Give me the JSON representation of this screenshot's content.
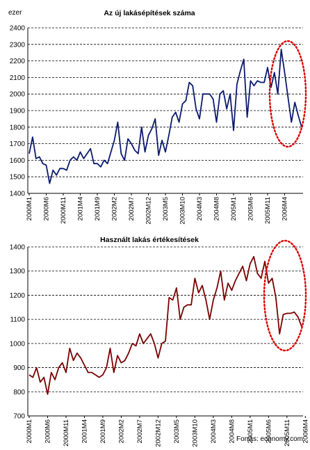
{
  "source": "Forrás: economy.com",
  "colors": {
    "chart1_line": "#0a1a6e",
    "chart2_line": "#7a0000",
    "ellipse": "#dd0000",
    "grid": "#000000"
  },
  "chart_data": [
    {
      "type": "line",
      "title": "Az új lakásépítések száma",
      "ylabel": "ezer",
      "ylim": [
        1400,
        2400
      ],
      "yticks": [
        1400,
        1500,
        1600,
        1700,
        1800,
        1900,
        2000,
        2100,
        2200,
        2300,
        2400
      ],
      "grid": "horizontal dashed",
      "x_tick_labels": [
        "2000M1",
        "2000M6",
        "2000M11",
        "2001M4",
        "2001M9",
        "2002M2",
        "2002M7",
        "2002M12",
        "2003M5",
        "2003M10",
        "2004M3",
        "2004M8",
        "2005M1",
        "2005M6",
        "2005M11",
        "2006M4"
      ],
      "x_label_every": 5,
      "annotation": "red dotted ellipse around 2005M11–2006M8",
      "series": [
        {
          "values": [
            1640,
            1740,
            1610,
            1620,
            1580,
            1570,
            1460,
            1540,
            1510,
            1550,
            1550,
            1540,
            1600,
            1620,
            1600,
            1650,
            1610,
            1640,
            1670,
            1580,
            1580,
            1560,
            1600,
            1580,
            1650,
            1720,
            1830,
            1640,
            1600,
            1730,
            1700,
            1660,
            1640,
            1800,
            1650,
            1750,
            1790,
            1850,
            1630,
            1720,
            1650,
            1750,
            1860,
            1890,
            1830,
            1940,
            1960,
            2070,
            2050,
            1910,
            1850,
            2000,
            2000,
            2000,
            1970,
            1830,
            2000,
            2020,
            1910,
            2000,
            1780,
            2060,
            2140,
            2210,
            1860,
            2080,
            2050,
            2080,
            2070,
            2070,
            2160,
            2040,
            2130,
            2000,
            2270,
            2130,
            1980,
            1830,
            1950,
            1870,
            1800
          ]
        }
      ]
    },
    {
      "type": "line",
      "title": "Használt lakás értékesítések",
      "ylabel": "",
      "ylim": [
        700,
        1400
      ],
      "yticks": [
        700,
        800,
        900,
        1000,
        1100,
        1200,
        1300,
        1400
      ],
      "grid": "horizontal dashed",
      "x_tick_labels": [
        "2000M1",
        "2000M6",
        "2000M11",
        "2001M4",
        "2001M9",
        "2002M2",
        "2002M7",
        "2002M12",
        "2003M5",
        "2003M10",
        "2004M3",
        "2004M8",
        "2005M1",
        "2005M6",
        "2005M11",
        "2006M4"
      ],
      "x_label_every": 5,
      "annotation": "red dotted ellipse around 2005M11–2006M8",
      "series": [
        {
          "values": [
            870,
            860,
            900,
            840,
            860,
            790,
            880,
            850,
            900,
            920,
            880,
            980,
            930,
            960,
            940,
            910,
            880,
            880,
            870,
            860,
            870,
            900,
            980,
            880,
            950,
            920,
            930,
            960,
            1000,
            990,
            1040,
            1000,
            1020,
            1040,
            1000,
            940,
            1000,
            1010,
            1190,
            1180,
            1230,
            1100,
            1150,
            1160,
            1160,
            1270,
            1210,
            1240,
            1180,
            1100,
            1180,
            1230,
            1300,
            1180,
            1250,
            1220,
            1260,
            1290,
            1320,
            1260,
            1330,
            1360,
            1290,
            1270,
            1340,
            1250,
            1270,
            1190,
            1040,
            1120,
            1125,
            1125,
            1130,
            1110,
            1070
          ]
        }
      ]
    }
  ]
}
